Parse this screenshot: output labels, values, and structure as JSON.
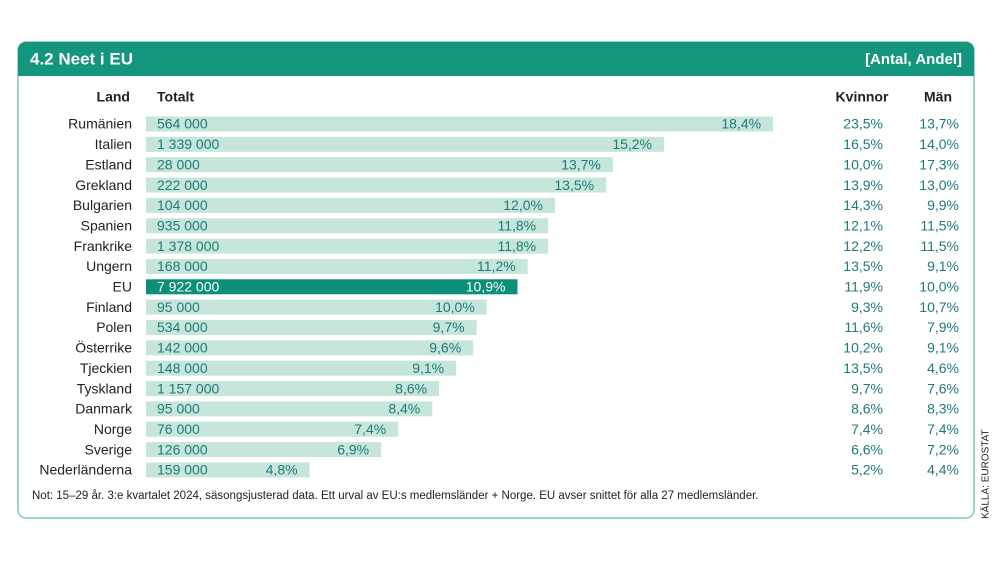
{
  "chart_data": {
    "type": "bar",
    "title": "4.2  Neet i EU",
    "subtitle": "[Antal, Andel]",
    "headers": {
      "country": "Land",
      "total": "Totalt",
      "women": "Kvinnor",
      "men": "Män"
    },
    "categories": [
      "Rumänien",
      "Italien",
      "Estland",
      "Grekland",
      "Bulgarien",
      "Spanien",
      "Frankrike",
      "Ungern",
      "EU",
      "Finland",
      "Polen",
      "Österrike",
      "Tjeckien",
      "Tyskland",
      "Danmark",
      "Norge",
      "Sverige",
      "Nederländerna"
    ],
    "values": [
      18.4,
      15.2,
      13.7,
      13.5,
      12.0,
      11.8,
      11.8,
      11.2,
      10.9,
      10.0,
      9.7,
      9.6,
      9.1,
      8.6,
      8.4,
      7.4,
      6.9,
      4.8
    ],
    "value_labels": [
      "18,4%",
      "15,2%",
      "13,7%",
      "13,5%",
      "12,0%",
      "11,8%",
      "11,8%",
      "11,2%",
      "10,9%",
      "10,0%",
      "9,7%",
      "9,6%",
      "9,1%",
      "8,6%",
      "8,4%",
      "7,4%",
      "6,9%",
      "4,8%"
    ],
    "totals": [
      564000,
      1339000,
      28000,
      222000,
      104000,
      935000,
      1378000,
      168000,
      7922000,
      95000,
      534000,
      142000,
      148000,
      1157000,
      95000,
      76000,
      126000,
      159000
    ],
    "total_labels": [
      "564 000",
      "1 339 000",
      "28 000",
      "222 000",
      "104 000",
      "935 000",
      "1 378 000",
      "168 000",
      "7 922 000",
      "95 000",
      "534 000",
      "142 000",
      "148 000",
      "1 157 000",
      "95 000",
      "76 000",
      "126 000",
      "159 000"
    ],
    "women": [
      23.5,
      16.5,
      10.0,
      13.9,
      14.3,
      12.1,
      12.2,
      13.5,
      11.9,
      9.3,
      11.6,
      10.2,
      13.5,
      9.7,
      8.6,
      7.4,
      6.6,
      5.2
    ],
    "women_labels": [
      "23,5%",
      "16,5%",
      "10,0%",
      "13,9%",
      "14,3%",
      "12,1%",
      "12,2%",
      "13,5%",
      "11,9%",
      "9,3%",
      "11,6%",
      "10,2%",
      "13,5%",
      "9,7%",
      "8,6%",
      "7,4%",
      "6,6%",
      "5,2%"
    ],
    "men": [
      13.7,
      14.0,
      17.3,
      13.0,
      9.9,
      11.5,
      11.5,
      9.1,
      10.0,
      10.7,
      7.9,
      9.1,
      4.6,
      7.6,
      8.3,
      7.4,
      7.2,
      4.4
    ],
    "men_labels": [
      "13,7%",
      "14,0%",
      "17,3%",
      "13,0%",
      "9,9%",
      "11,5%",
      "11,5%",
      "9,1%",
      "10,0%",
      "10,7%",
      "7,9%",
      "9,1%",
      "4,6%",
      "7,6%",
      "8,3%",
      "7,4%",
      "7,2%",
      "4,4%"
    ],
    "color": "#c6e6dc",
    "highlight": "EU",
    "highlight_color": "#0b8f78",
    "note": "Not: 15–29 år. 3:e kvartalet 2024, säsongsjusterad data. Ett urval av EU:s medlemsländer + Norge. EU avser snittet för alla 27 medlemsländer.",
    "source": "KÄLLA: EUROSTAT"
  }
}
